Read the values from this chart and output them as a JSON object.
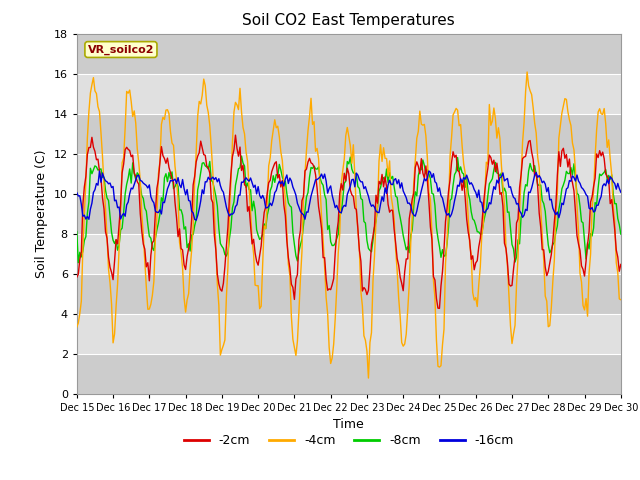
{
  "title": "Soil CO2 East Temperatures",
  "xlabel": "Time",
  "ylabel": "Soil Temperature (C)",
  "annotation": "VR_soilco2",
  "ylim": [
    0,
    18
  ],
  "xlim": [
    0,
    360
  ],
  "yticks": [
    0,
    2,
    4,
    6,
    8,
    10,
    12,
    14,
    16,
    18
  ],
  "xtick_labels": [
    "Dec 15",
    "Dec 16",
    "Dec 17",
    "Dec 18",
    "Dec 19",
    "Dec 20",
    "Dec 21",
    "Dec 22",
    "Dec 23",
    "Dec 24",
    "Dec 25",
    "Dec 26",
    "Dec 27",
    "Dec 28",
    "Dec 29",
    "Dec 30"
  ],
  "xtick_positions": [
    0,
    24,
    48,
    72,
    96,
    120,
    144,
    168,
    192,
    216,
    240,
    264,
    288,
    312,
    336,
    360
  ],
  "colors": {
    "neg2cm": "#dd0000",
    "neg4cm": "#ffaa00",
    "neg8cm": "#00cc00",
    "neg16cm": "#0000dd"
  },
  "legend_labels": [
    "-2cm",
    "-4cm",
    "-8cm",
    "-16cm"
  ],
  "background_color": "#ffffff",
  "plot_bg_color": "#e0e0e0",
  "band_light_color": "#cccccc",
  "figsize": [
    6.4,
    4.8
  ],
  "dpi": 100
}
